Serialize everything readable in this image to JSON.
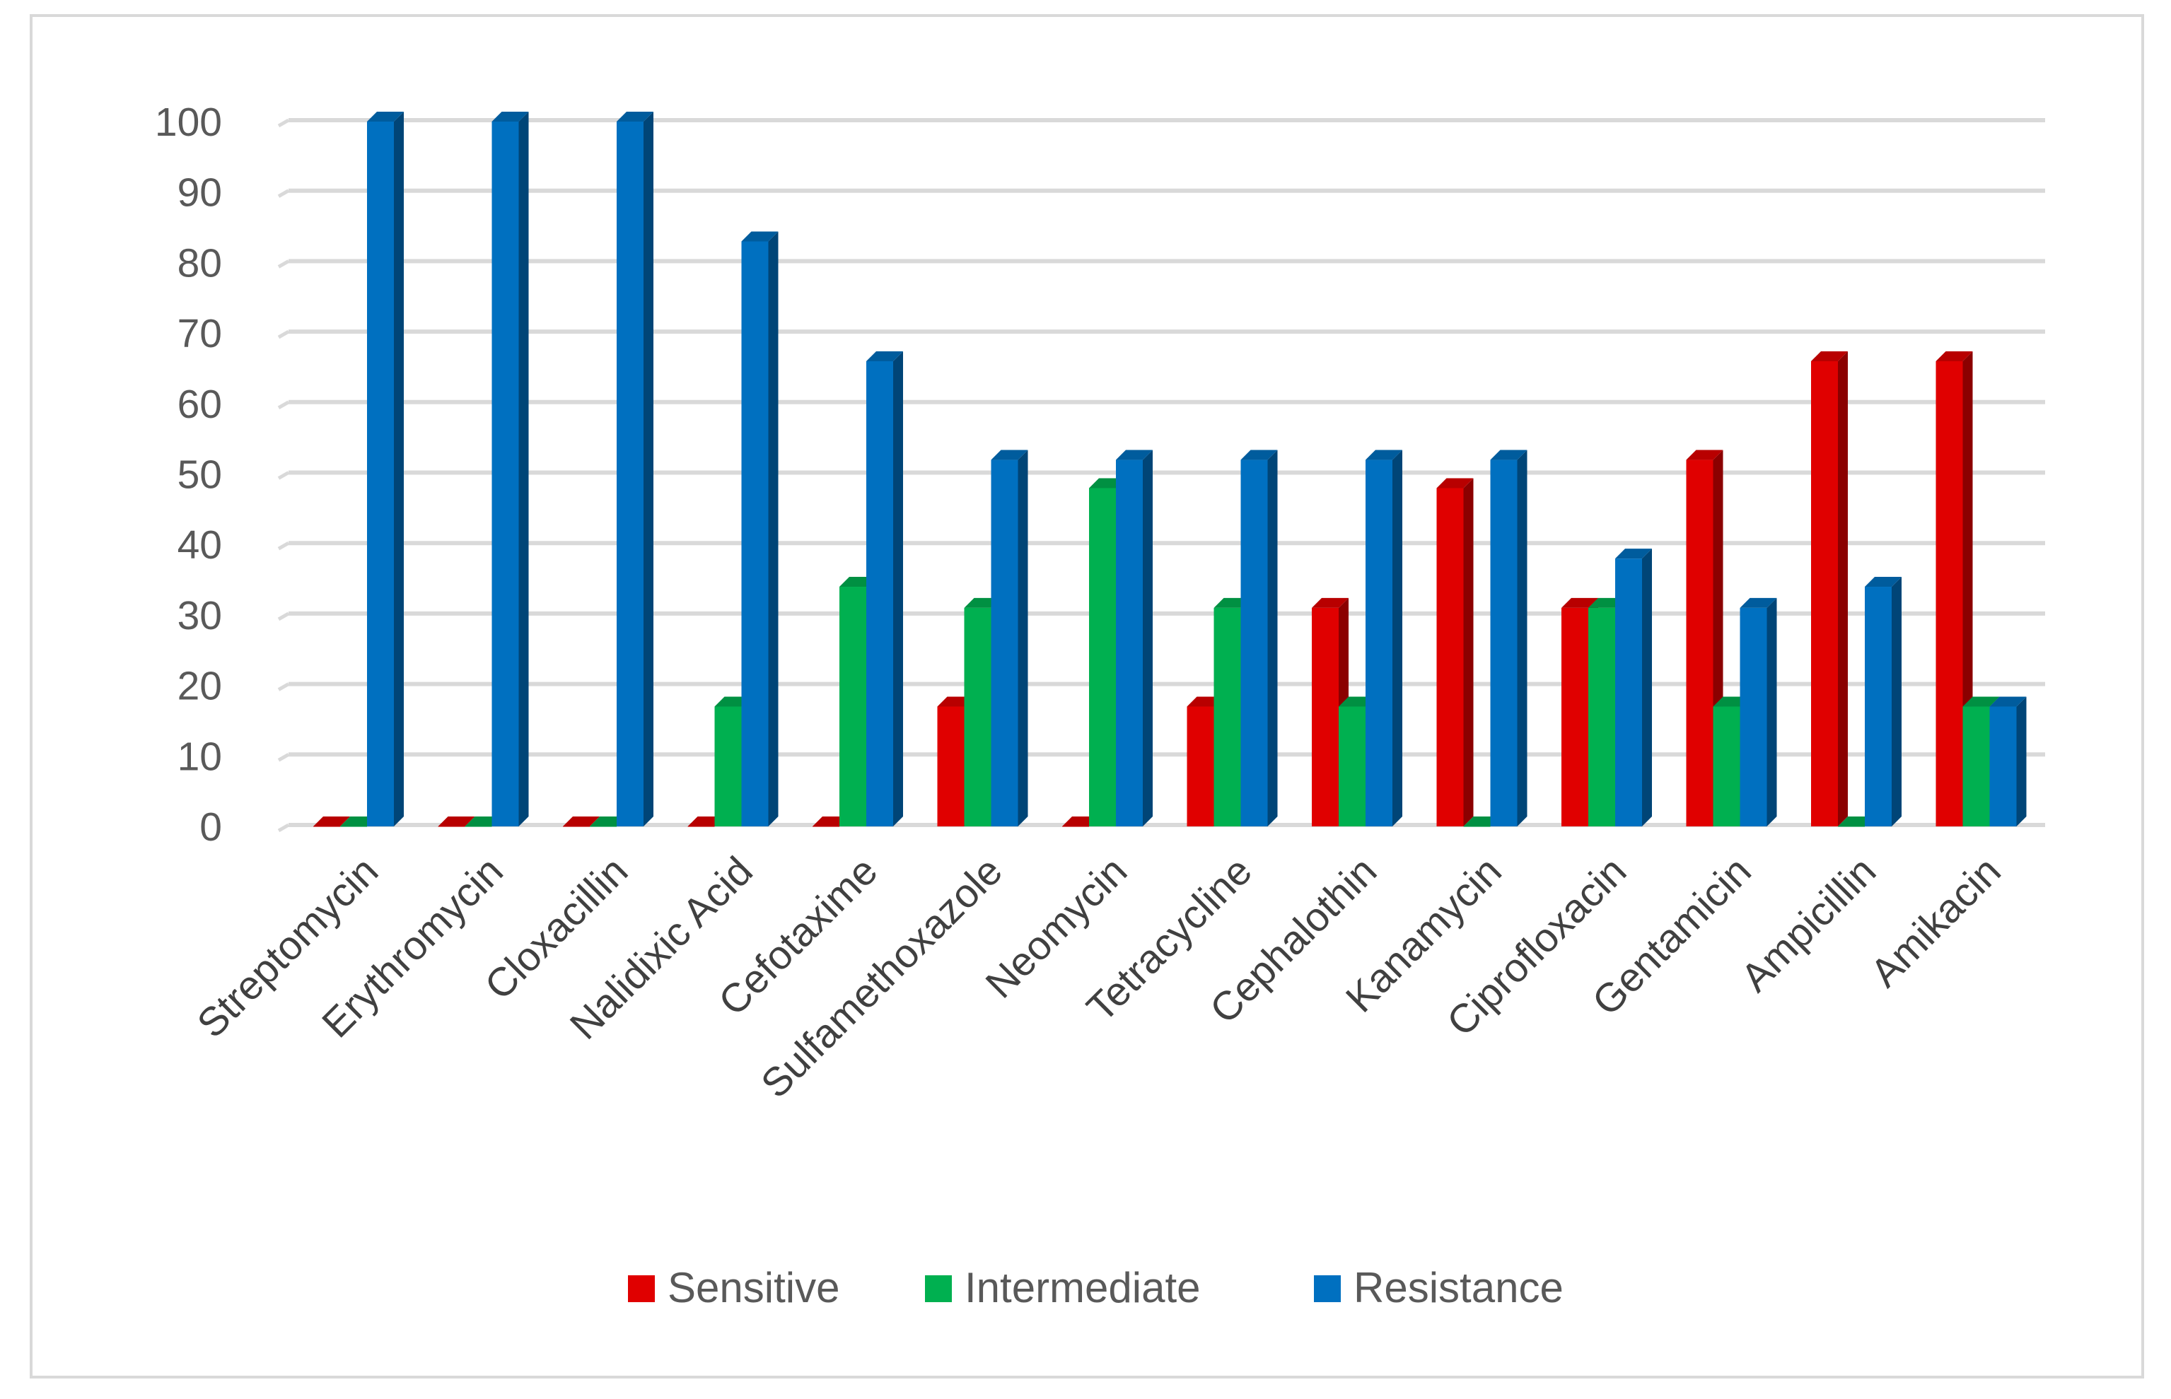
{
  "chart_data": {
    "type": "bar",
    "title": "",
    "xlabel": "",
    "ylabel": "",
    "ylim": [
      0,
      100
    ],
    "yticks": [
      0,
      10,
      20,
      30,
      40,
      50,
      60,
      70,
      80,
      90,
      100
    ],
    "grid": true,
    "legend_position": "bottom",
    "categories": [
      "Streptomycin",
      "Erythromycin",
      "Cloxacillin",
      "Nalidixic Acid",
      "Cefotaxime",
      "Sulfamethoxazole",
      "Neomycin",
      "Tetracycline",
      "Cephalothin",
      "Kanamycin",
      "Ciprofloxacin",
      "Gentamicin",
      "Ampicillin",
      "Amikacin"
    ],
    "series": [
      {
        "name": "Sensitive",
        "color": "#e00000",
        "values": [
          0,
          0,
          0,
          0,
          0,
          17,
          0,
          17,
          31,
          48,
          31,
          52,
          66,
          66
        ]
      },
      {
        "name": "Intermediate",
        "color": "#00b050",
        "values": [
          0,
          0,
          0,
          17,
          34,
          31,
          48,
          31,
          17,
          0,
          31,
          17,
          0,
          17
        ]
      },
      {
        "name": "Resistance",
        "color": "#0070c0",
        "values": [
          100,
          100,
          100,
          83,
          66,
          52,
          52,
          52,
          52,
          52,
          38,
          31,
          34,
          17
        ]
      }
    ]
  }
}
